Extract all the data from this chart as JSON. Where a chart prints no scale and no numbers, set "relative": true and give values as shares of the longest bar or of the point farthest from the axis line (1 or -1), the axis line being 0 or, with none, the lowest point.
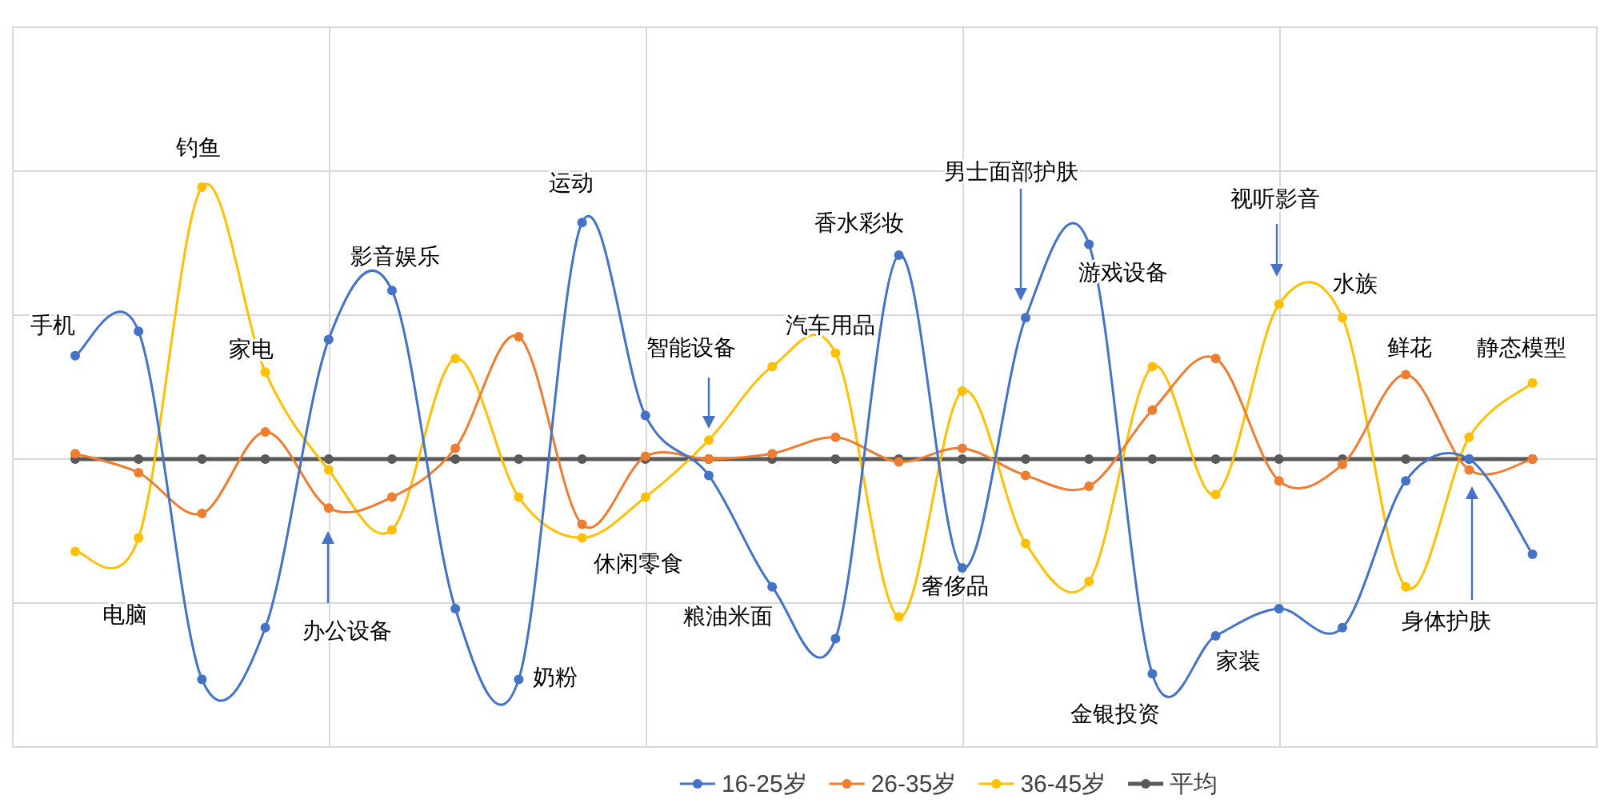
{
  "chart_data": {
    "type": "line",
    "relative": true,
    "marker": "circle",
    "grid": true,
    "legend": "bottom",
    "categories": [
      null,
      null,
      null,
      null,
      null,
      null,
      null,
      null,
      null,
      null,
      null,
      null,
      null,
      null,
      null,
      null,
      null,
      null,
      null,
      null,
      null,
      null,
      null,
      null
    ],
    "series": [
      {
        "name": "16-25岁",
        "color": "#4472c4",
        "values": [
          0.38,
          0.47,
          -0.81,
          -0.62,
          0.44,
          0.62,
          -0.55,
          -0.81,
          0.87,
          0.16,
          -0.06,
          -0.47,
          -0.66,
          0.75,
          -0.4,
          0.52,
          0.79,
          -0.79,
          -0.65,
          -0.55,
          -0.62,
          -0.08,
          0,
          -0.35
        ]
      },
      {
        "name": "26-35岁",
        "color": "#ed7d31",
        "values": [
          0.02,
          -0.05,
          -0.2,
          0.1,
          -0.18,
          -0.14,
          0.04,
          0.45,
          -0.24,
          0.01,
          0,
          0.02,
          0.08,
          -0.01,
          0.04,
          -0.06,
          -0.1,
          0.18,
          0.37,
          -0.08,
          -0.02,
          0.31,
          -0.04,
          0
        ]
      },
      {
        "name": "36-45岁",
        "color": "#ffc000",
        "values": [
          -0.34,
          -0.29,
          1,
          0.32,
          -0.04,
          -0.26,
          0.37,
          -0.14,
          -0.29,
          -0.14,
          0.07,
          0.34,
          0.39,
          -0.58,
          0.25,
          -0.31,
          -0.45,
          0.34,
          -0.13,
          0.57,
          0.52,
          -0.47,
          0.08,
          0.28
        ]
      },
      {
        "name": "平均",
        "color": "#595959",
        "values": [
          0,
          0,
          0,
          0,
          0,
          0,
          0,
          0,
          0,
          0,
          0,
          0,
          0,
          0,
          0,
          0,
          0,
          0,
          0,
          0,
          0,
          0,
          0,
          0
        ]
      }
    ],
    "annotations": [
      "手机",
      "电脑",
      "钓鱼",
      "家电",
      "办公设备",
      "影音娱乐",
      "奶粉",
      "运动",
      "休闲零食",
      "智能设备",
      "粮油米面",
      "汽车用品",
      "香水彩妆",
      "奢侈品",
      "男士面部护肤",
      "游戏设备",
      "金银投资",
      "家装",
      "视听影音",
      "水族",
      "鲜花",
      "身体护肤",
      "静态模型"
    ]
  }
}
